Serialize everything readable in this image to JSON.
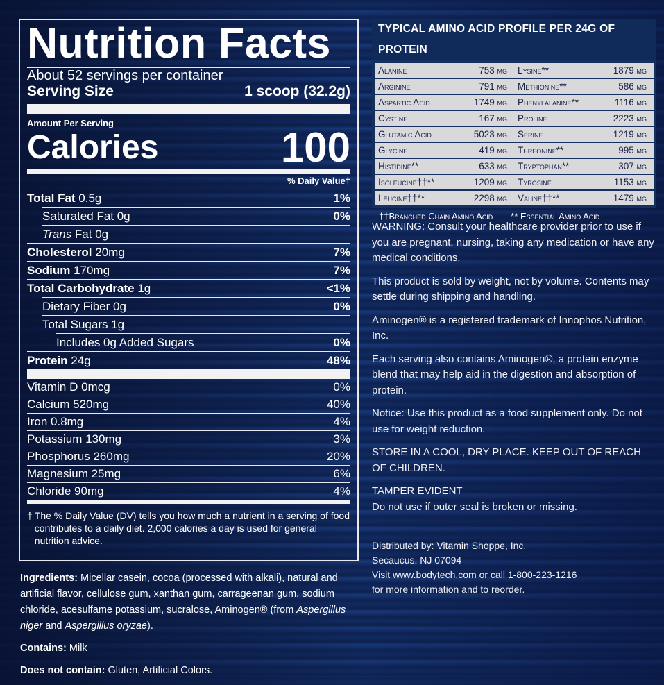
{
  "nutrition": {
    "title": "Nutrition Facts",
    "servings": "About 52 servings per container",
    "serving_size_label": "Serving Size",
    "serving_size_value": "1 scoop (32.2g)",
    "amount_per_serving": "Amount Per Serving",
    "calories_label": "Calories",
    "calories_value": "100",
    "daily_value_header": "% Daily Value†",
    "nutrients": [
      {
        "bold": "Total Fat",
        "name": " 0.5g",
        "dv": "1%",
        "indent": 0
      },
      {
        "bold": "",
        "name": "Saturated Fat 0g",
        "dv": "0%",
        "indent": 1
      },
      {
        "bold": "",
        "italic": "Trans",
        "name": " Fat 0g",
        "dv": "",
        "indent": 1
      },
      {
        "bold": "Cholesterol",
        "name": " 20mg",
        "dv": "7%",
        "indent": 0
      },
      {
        "bold": "Sodium",
        "name": " 170mg",
        "dv": "7%",
        "indent": 0
      },
      {
        "bold": "Total Carbohydrate",
        "name": " 1g",
        "dv": "<1%",
        "indent": 0
      },
      {
        "bold": "",
        "name": "Dietary Fiber 0g",
        "dv": "0%",
        "indent": 1
      },
      {
        "bold": "",
        "name": "Total Sugars 1g",
        "dv": "",
        "indent": 1
      },
      {
        "bold": "",
        "name": "Includes 0g Added Sugars",
        "dv": "0%",
        "indent": 2
      },
      {
        "bold": "Protein",
        "name": " 24g",
        "dv": "48%",
        "indent": 0
      }
    ],
    "vitamins": [
      {
        "name": "Vitamin D 0mcg",
        "dv": "0%"
      },
      {
        "name": "Calcium 520mg",
        "dv": "40%"
      },
      {
        "name": "Iron 0.8mg",
        "dv": "4%"
      },
      {
        "name": "Potassium 130mg",
        "dv": "3%"
      },
      {
        "name": "Phosphorus 260mg",
        "dv": "20%"
      },
      {
        "name": "Magnesium 25mg",
        "dv": "6%"
      },
      {
        "name": "Chloride 90mg",
        "dv": "4%"
      }
    ],
    "footnote_mark": "†",
    "footnote": "The % Daily Value (DV) tells you how much a nutrient in a serving of food contributes to a daily diet. 2,000 calories a day is used for general nutrition advice."
  },
  "ingredients": {
    "label": "Ingredients:",
    "text1": " Micellar casein, cocoa (processed with alkali), natural and artificial flavor, cellulose gum, xanthan gum, carrageenan gum, sodium chloride, acesulfame potassium, sucralose, Aminogen® (from ",
    "italic1": "Aspergillus niger",
    "text2": " and ",
    "italic2": "Aspergillus oryzae",
    "text3": ").",
    "contains_label": "Contains:",
    "contains": " Milk",
    "not_contain_label": "Does not contain:",
    "not_contain": " Gluten, Artificial Colors."
  },
  "amino": {
    "title": "TYPICAL AMINO ACID PROFILE PER 24G OF PROTEIN",
    "rows": [
      [
        {
          "name": "Alanine",
          "value": "753 mg"
        },
        {
          "name": "Lysine**",
          "value": "1879 mg"
        }
      ],
      [
        {
          "name": "Arginine",
          "value": "791 mg"
        },
        {
          "name": "Methionine**",
          "value": "586 mg"
        }
      ],
      [
        {
          "name": "Aspartic Acid",
          "value": "1749 mg"
        },
        {
          "name": "Phenylalanine**",
          "value": "1116 mg"
        }
      ],
      [
        {
          "name": "Cystine",
          "value": "167 mg"
        },
        {
          "name": "Proline",
          "value": "2223 mg"
        }
      ],
      [
        {
          "name": "Glutamic Acid",
          "value": "5023 mg"
        },
        {
          "name": "Serine",
          "value": "1219 mg"
        }
      ],
      [
        {
          "name": "Glycine",
          "value": "419 mg"
        },
        {
          "name": "Threonine**",
          "value": "995 mg"
        }
      ],
      [
        {
          "name": "Histidine**",
          "value": "633 mg"
        },
        {
          "name": "Tryptophan**",
          "value": "307 mg"
        }
      ],
      [
        {
          "name": "Isoleucine††**",
          "value": "1209 mg"
        },
        {
          "name": "Tyrosine",
          "value": "1153 mg"
        }
      ],
      [
        {
          "name": "Leucine††**",
          "value": "2298 mg"
        },
        {
          "name": "Valine††**",
          "value": "1479 mg"
        }
      ]
    ],
    "legend_bcaa": "††Branched Chain Amino Acid",
    "legend_essential": "** Essential Amino Acid"
  },
  "notes": {
    "warning": "WARNING: Consult your healthcare provider prior to use if you are pregnant, nursing, taking any medication or have any medical conditions.",
    "weight": "This product is sold by weight, not by volume. Contents may settle during shipping and handling.",
    "trademark": "Aminogen® is a registered trademark of Innophos Nutrition, Inc.",
    "aminogen": "Each serving also contains Aminogen®, a protein enzyme blend that may help aid in the digestion and absorption of protein.",
    "notice": "Notice: Use this product as a food supplement only. Do not use for weight reduction.",
    "store": "STORE IN A COOL, DRY PLACE. KEEP OUT OF REACH OF CHILDREN.",
    "tamper_title": "TAMPER EVIDENT",
    "tamper": "Do not use if outer seal is broken or missing.",
    "distributor": [
      "Distributed by: Vitamin Shoppe, Inc.",
      "Secaucus, NJ 07094",
      "Visit www.bodytech.com or call 1-800-223-1216",
      "for more information and to reorder."
    ]
  }
}
